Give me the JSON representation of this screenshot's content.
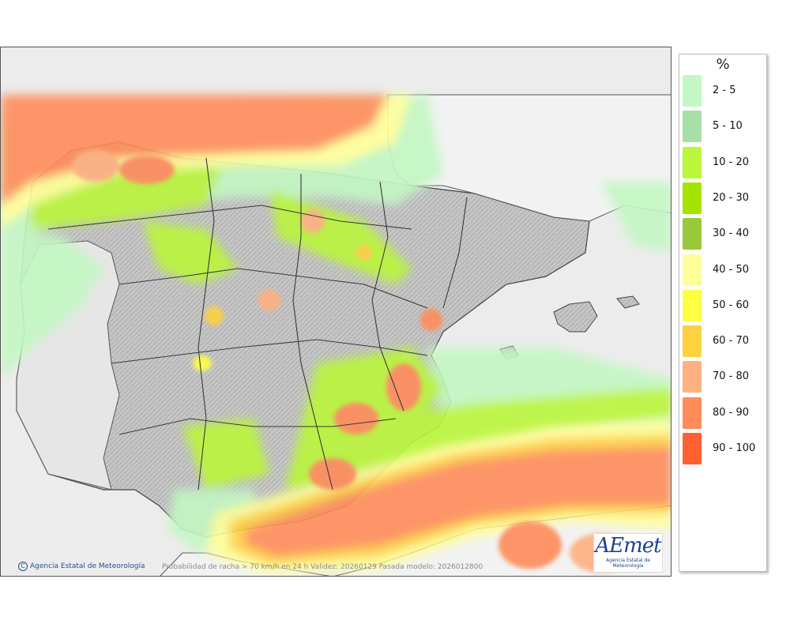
{
  "map": {
    "copyright": "Agencia Estatal de Meteorología",
    "copyright_symbol": "C",
    "caption": "Probabilidad de racha > 70 km/h en 24 h  Validez: 20260129 Pasada modelo: 2026012800",
    "logo_text": "AEmet",
    "logo_subtext": "Agencia Estatal de Meteorología",
    "colors": {
      "sea": "#eaeaea",
      "land": "#c8c8c8",
      "border": "#333333"
    }
  },
  "legend": {
    "title": "%",
    "items": [
      {
        "label": "2 - 5",
        "color": "#c3f7c3"
      },
      {
        "label": "5 - 10",
        "color": "#a7e0a7"
      },
      {
        "label": "10 - 20",
        "color": "#baf63a"
      },
      {
        "label": "20 - 30",
        "color": "#a5e400"
      },
      {
        "label": "30 - 40",
        "color": "#98c93a"
      },
      {
        "label": "40 - 50",
        "color": "#ffff99"
      },
      {
        "label": "50 - 60",
        "color": "#ffff44"
      },
      {
        "label": "60 - 70",
        "color": "#ffd040"
      },
      {
        "label": "70 - 80",
        "color": "#ffb080"
      },
      {
        "label": "80 - 90",
        "color": "#ff8c5a"
      },
      {
        "label": "90 - 100",
        "color": "#ff6030"
      }
    ]
  }
}
